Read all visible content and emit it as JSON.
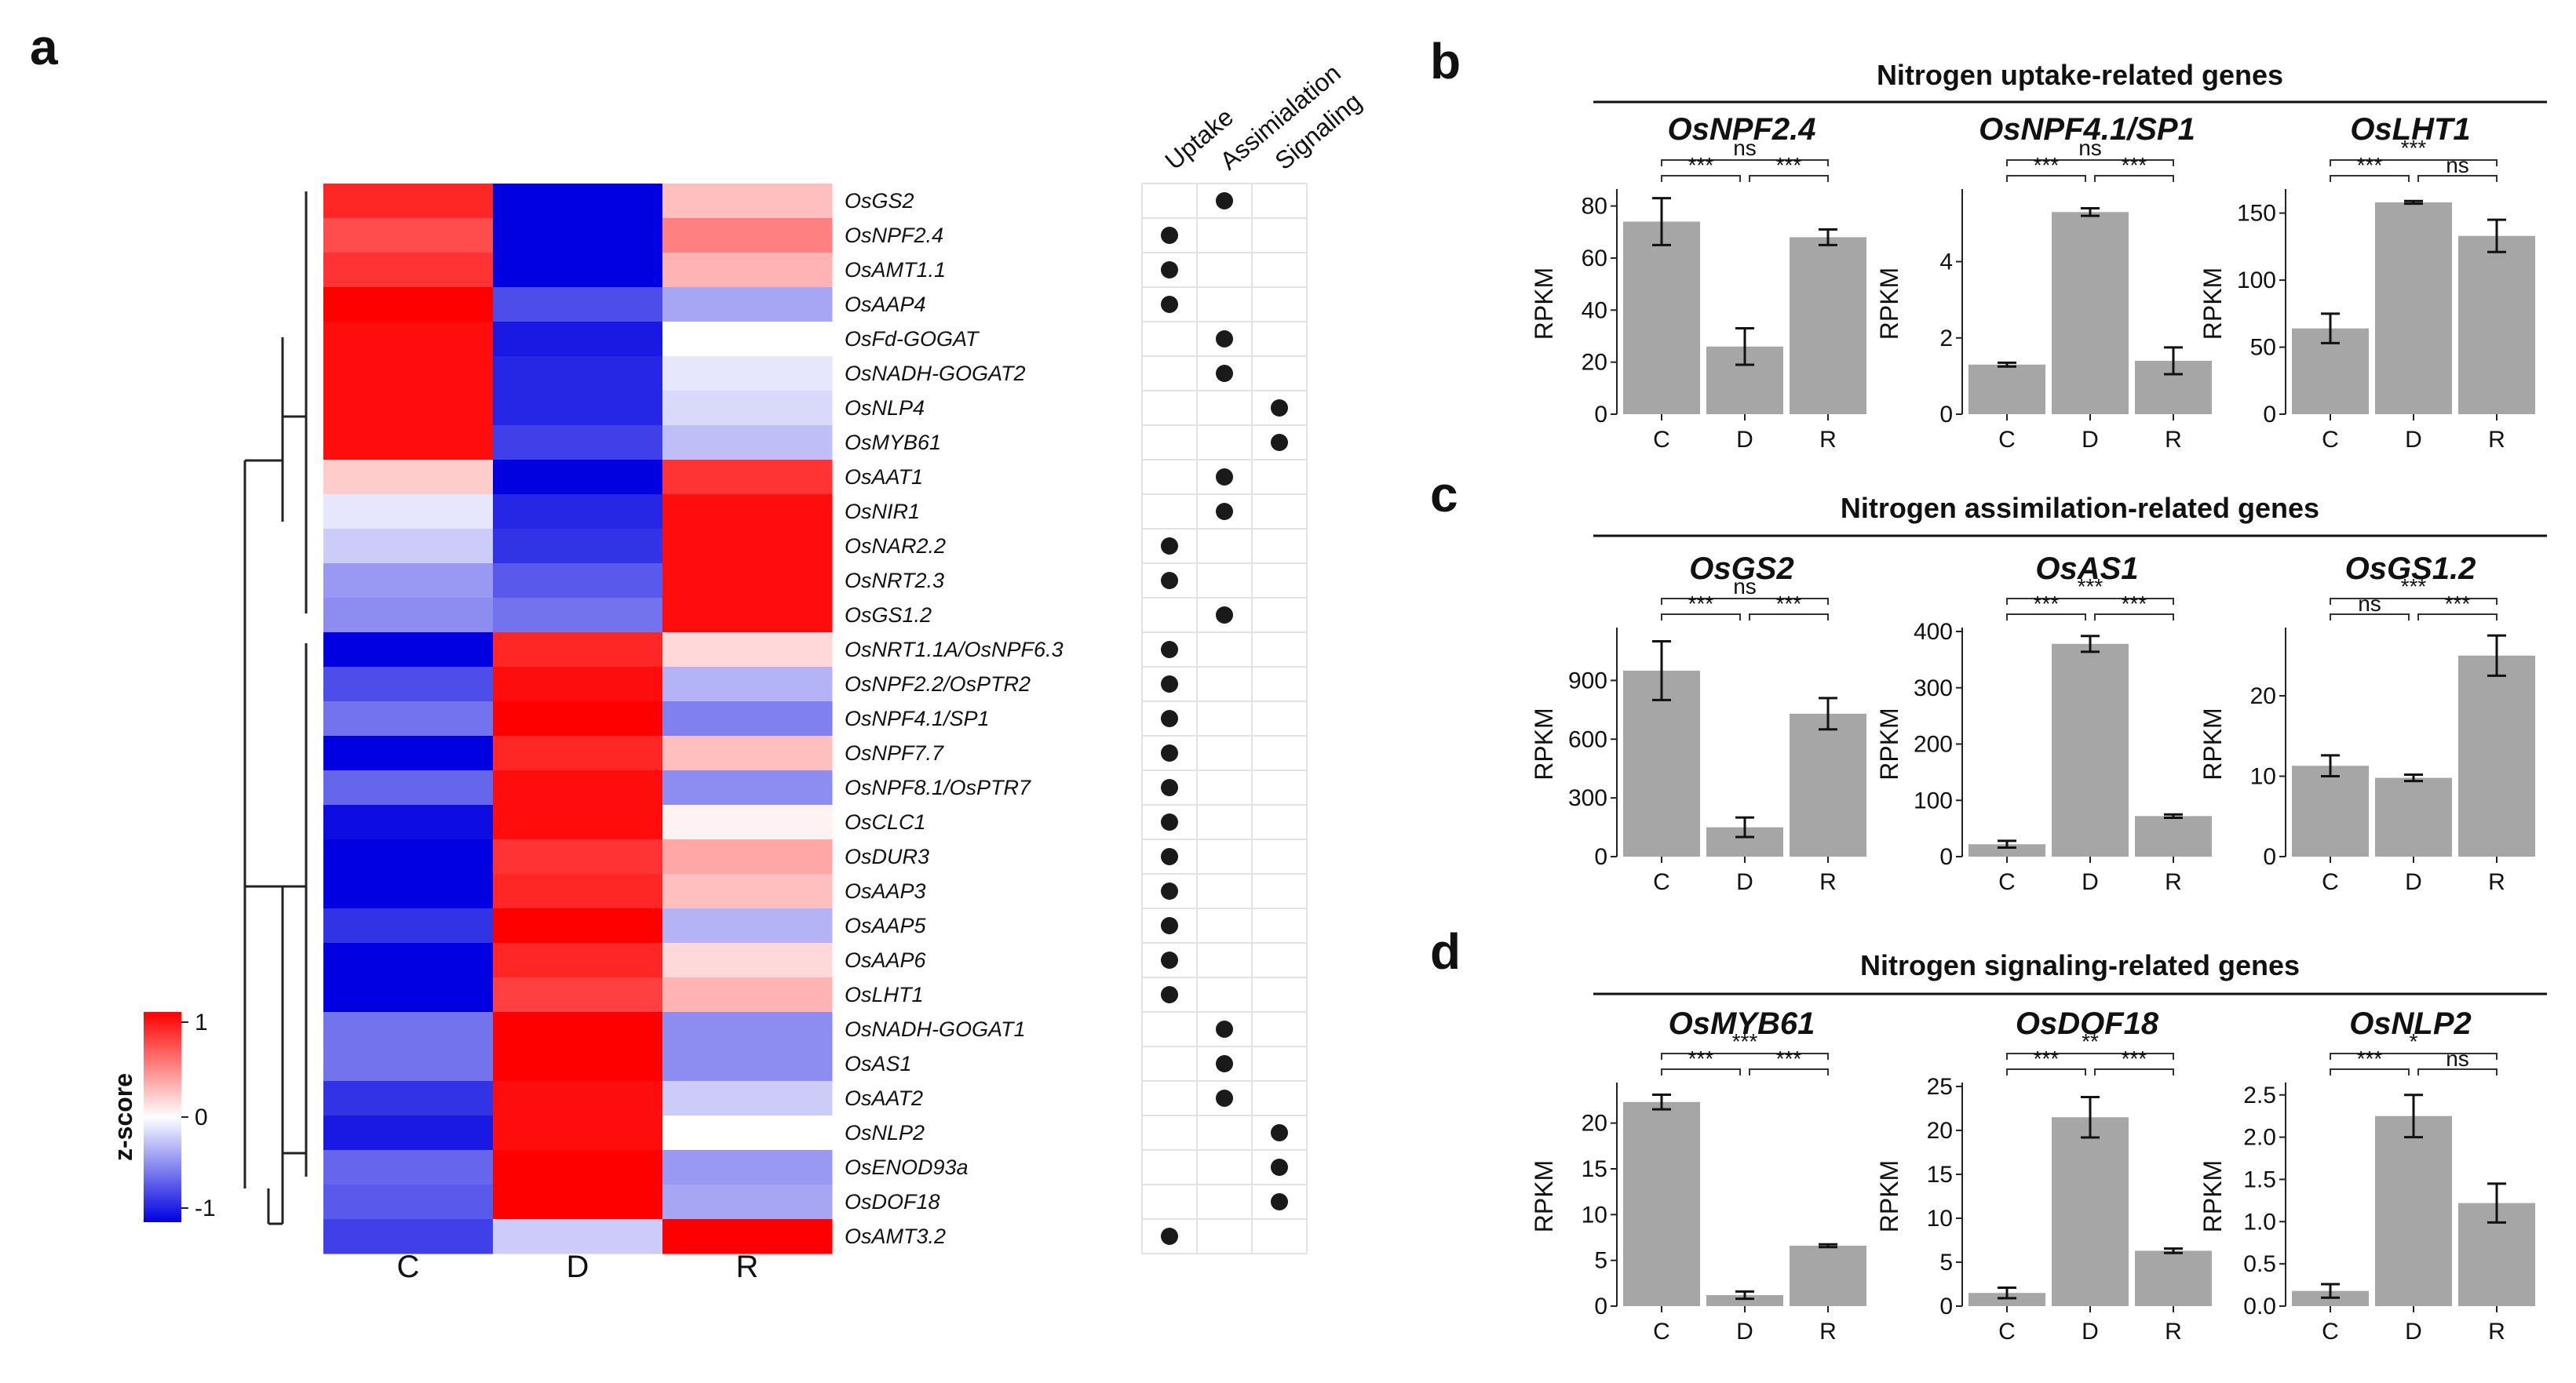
{
  "panels": {
    "a": "a",
    "b": "b",
    "c": "c",
    "d": "d"
  },
  "heatmap": {
    "columns": [
      "C",
      "D",
      "R"
    ],
    "legend_title": "z-score",
    "legend_ticks": [
      "1",
      "0",
      "-1"
    ],
    "category_headers": [
      "Uptake",
      "Assimialation",
      "Signaling"
    ],
    "genes": [
      {
        "name": "OsGS2",
        "z": [
          0.85,
          -1.0,
          0.25
        ],
        "category": "Assimilation"
      },
      {
        "name": "OsNPF2.4",
        "z": [
          0.7,
          -1.0,
          0.5
        ],
        "category": "Uptake"
      },
      {
        "name": "OsAMT1.1",
        "z": [
          0.8,
          -1.0,
          0.3
        ],
        "category": "Uptake"
      },
      {
        "name": "OsAAP4",
        "z": [
          1.0,
          -0.7,
          -0.35
        ],
        "category": "Uptake"
      },
      {
        "name": "OsFd-GOGAT",
        "z": [
          0.95,
          -0.9,
          0.0
        ],
        "category": "Assimilation"
      },
      {
        "name": "OsNADH-GOGAT2",
        "z": [
          0.95,
          -0.85,
          -0.1
        ],
        "category": "Assimilation"
      },
      {
        "name": "OsNLP4",
        "z": [
          0.95,
          -0.85,
          -0.15
        ],
        "category": "Signaling"
      },
      {
        "name": "OsMYB61",
        "z": [
          0.95,
          -0.75,
          -0.25
        ],
        "category": "Signaling"
      },
      {
        "name": "OsAAT1",
        "z": [
          0.2,
          -1.0,
          0.8
        ],
        "category": "Assimilation"
      },
      {
        "name": "OsNIR1",
        "z": [
          -0.1,
          -0.85,
          0.95
        ],
        "category": "Assimilation"
      },
      {
        "name": "OsNAR2.2",
        "z": [
          -0.2,
          -0.8,
          0.95
        ],
        "category": "Uptake"
      },
      {
        "name": "OsNRT2.3",
        "z": [
          -0.4,
          -0.65,
          0.95
        ],
        "category": "Uptake"
      },
      {
        "name": "OsGS1.2",
        "z": [
          -0.45,
          -0.55,
          0.95
        ],
        "category": "Assimilation"
      },
      {
        "name": "OsNRT1.1A/OsNPF6.3",
        "z": [
          -1.0,
          0.85,
          0.15
        ],
        "category": "Uptake"
      },
      {
        "name": "OsNPF2.2/OsPTR2",
        "z": [
          -0.7,
          0.95,
          -0.3
        ],
        "category": "Uptake"
      },
      {
        "name": "OsNPF4.1/SP1",
        "z": [
          -0.55,
          1.0,
          -0.5
        ],
        "category": "Uptake"
      },
      {
        "name": "OsNPF7.7",
        "z": [
          -1.0,
          0.85,
          0.25
        ],
        "category": "Uptake"
      },
      {
        "name": "OsNPF8.1/OsPTR7",
        "z": [
          -0.6,
          0.95,
          -0.45
        ],
        "category": "Uptake"
      },
      {
        "name": "OsCLC1",
        "z": [
          -0.95,
          0.95,
          0.05
        ],
        "category": "Uptake"
      },
      {
        "name": "OsDUR3",
        "z": [
          -1.0,
          0.8,
          0.35
        ],
        "category": "Uptake"
      },
      {
        "name": "OsAAP3",
        "z": [
          -1.0,
          0.85,
          0.25
        ],
        "category": "Uptake"
      },
      {
        "name": "OsAAP5",
        "z": [
          -0.8,
          1.0,
          -0.3
        ],
        "category": "Uptake"
      },
      {
        "name": "OsAAP6",
        "z": [
          -1.0,
          0.85,
          0.15
        ],
        "category": "Uptake"
      },
      {
        "name": "OsLHT1",
        "z": [
          -1.0,
          0.75,
          0.3
        ],
        "category": "Uptake"
      },
      {
        "name": "OsNADH-GOGAT1",
        "z": [
          -0.55,
          1.0,
          -0.45
        ],
        "category": "Assimilation"
      },
      {
        "name": "OsAS1",
        "z": [
          -0.55,
          1.0,
          -0.45
        ],
        "category": "Assimilation"
      },
      {
        "name": "OsAAT2",
        "z": [
          -0.8,
          0.95,
          -0.2
        ],
        "category": "Assimilation"
      },
      {
        "name": "OsNLP2",
        "z": [
          -0.9,
          0.95,
          0.0
        ],
        "category": "Signaling"
      },
      {
        "name": "OsENOD93a",
        "z": [
          -0.6,
          1.0,
          -0.4
        ],
        "category": "Signaling"
      },
      {
        "name": "OsDOF18",
        "z": [
          -0.65,
          1.0,
          -0.35
        ],
        "category": "Signaling"
      },
      {
        "name": "OsAMT3.2",
        "z": [
          -0.75,
          -0.2,
          1.0
        ],
        "category": "Uptake"
      }
    ]
  },
  "sections": [
    {
      "title": "Nitrogen uptake-related genes"
    },
    {
      "title": "Nitrogen assimilation-related genes"
    },
    {
      "title": "Nitrogen signaling-related genes"
    }
  ],
  "chart_data": [
    {
      "type": "bar",
      "title": "OsNPF2.4",
      "ylabel": "RPKM",
      "categories": [
        "C",
        "D",
        "R"
      ],
      "values": [
        74,
        26,
        68
      ],
      "errors": [
        9,
        7,
        3
      ],
      "ylim": [
        0,
        85
      ],
      "yticks": [
        "0",
        "20",
        "40",
        "60",
        "80"
      ],
      "sig": {
        "CD": "***",
        "CR": "ns",
        "DR": "***"
      }
    },
    {
      "type": "bar",
      "title": "OsNPF4.1/SP1",
      "ylabel": "RPKM",
      "categories": [
        "C",
        "D",
        "R"
      ],
      "values": [
        1.3,
        5.3,
        1.4
      ],
      "errors": [
        0.05,
        0.1,
        0.35
      ],
      "ylim": [
        0,
        5.8
      ],
      "yticks": [
        "0",
        "2",
        "4"
      ],
      "sig": {
        "CD": "***",
        "CR": "ns",
        "DR": "***"
      }
    },
    {
      "type": "bar",
      "title": "OsLHT1",
      "ylabel": "RPKM",
      "categories": [
        "C",
        "D",
        "R"
      ],
      "values": [
        64,
        158,
        133
      ],
      "errors": [
        11,
        1,
        12
      ],
      "ylim": [
        0,
        165
      ],
      "yticks": [
        "0",
        "50",
        "100",
        "150"
      ],
      "sig": {
        "CD": "***",
        "CR": "***",
        "DR": "ns"
      }
    },
    {
      "type": "bar",
      "title": "OsGS2",
      "ylabel": "RPKM",
      "categories": [
        "C",
        "D",
        "R"
      ],
      "values": [
        950,
        150,
        730
      ],
      "errors": [
        150,
        50,
        80
      ],
      "ylim": [
        0,
        1150
      ],
      "yticks": [
        "0",
        "300",
        "600",
        "900"
      ],
      "sig": {
        "CD": "***",
        "CR": "ns",
        "DR": "***"
      }
    },
    {
      "type": "bar",
      "title": "OsAS1",
      "ylabel": "RPKM",
      "categories": [
        "C",
        "D",
        "R"
      ],
      "values": [
        22,
        378,
        72
      ],
      "errors": [
        6,
        14,
        3
      ],
      "ylim": [
        0,
        400
      ],
      "yticks": [
        "0",
        "100",
        "200",
        "300",
        "400"
      ],
      "sig": {
        "CD": "***",
        "CR": "***",
        "DR": "***"
      }
    },
    {
      "type": "bar",
      "title": "OsGS1.2",
      "ylabel": "RPKM",
      "categories": [
        "C",
        "D",
        "R"
      ],
      "values": [
        11.3,
        9.8,
        25
      ],
      "errors": [
        1.3,
        0.4,
        2.5
      ],
      "ylim": [
        0,
        28
      ],
      "yticks": [
        "0",
        "10",
        "20"
      ],
      "sig": {
        "CD": "ns",
        "CR": "***",
        "DR": "***"
      }
    },
    {
      "type": "bar",
      "title": "OsMYB61",
      "ylabel": "RPKM",
      "categories": [
        "C",
        "D",
        "R"
      ],
      "values": [
        22.3,
        1.2,
        6.6
      ],
      "errors": [
        0.8,
        0.4,
        0.15
      ],
      "ylim": [
        0,
        24
      ],
      "yticks": [
        "0",
        "5",
        "10",
        "15",
        "20"
      ],
      "sig": {
        "CD": "***",
        "CR": "***",
        "DR": "***"
      }
    },
    {
      "type": "bar",
      "title": "OsDOF18",
      "ylabel": "RPKM",
      "categories": [
        "C",
        "D",
        "R"
      ],
      "values": [
        1.5,
        21.5,
        6.3
      ],
      "errors": [
        0.6,
        2.3,
        0.25
      ],
      "ylim": [
        0,
        25
      ],
      "yticks": [
        "0",
        "5",
        "10",
        "15",
        "20",
        "25"
      ],
      "sig": {
        "CD": "***",
        "CR": "**",
        "DR": "***"
      }
    },
    {
      "type": "bar",
      "title": "OsNLP2",
      "ylabel": "RPKM",
      "categories": [
        "C",
        "D",
        "R"
      ],
      "values": [
        0.18,
        2.25,
        1.22
      ],
      "errors": [
        0.08,
        0.25,
        0.23
      ],
      "ylim": [
        0,
        2.6
      ],
      "yticks": [
        "0.0",
        "0.5",
        "1.0",
        "1.5",
        "2.0",
        "2.5"
      ],
      "sig": {
        "CD": "***",
        "CR": "*",
        "DR": "ns"
      }
    }
  ]
}
